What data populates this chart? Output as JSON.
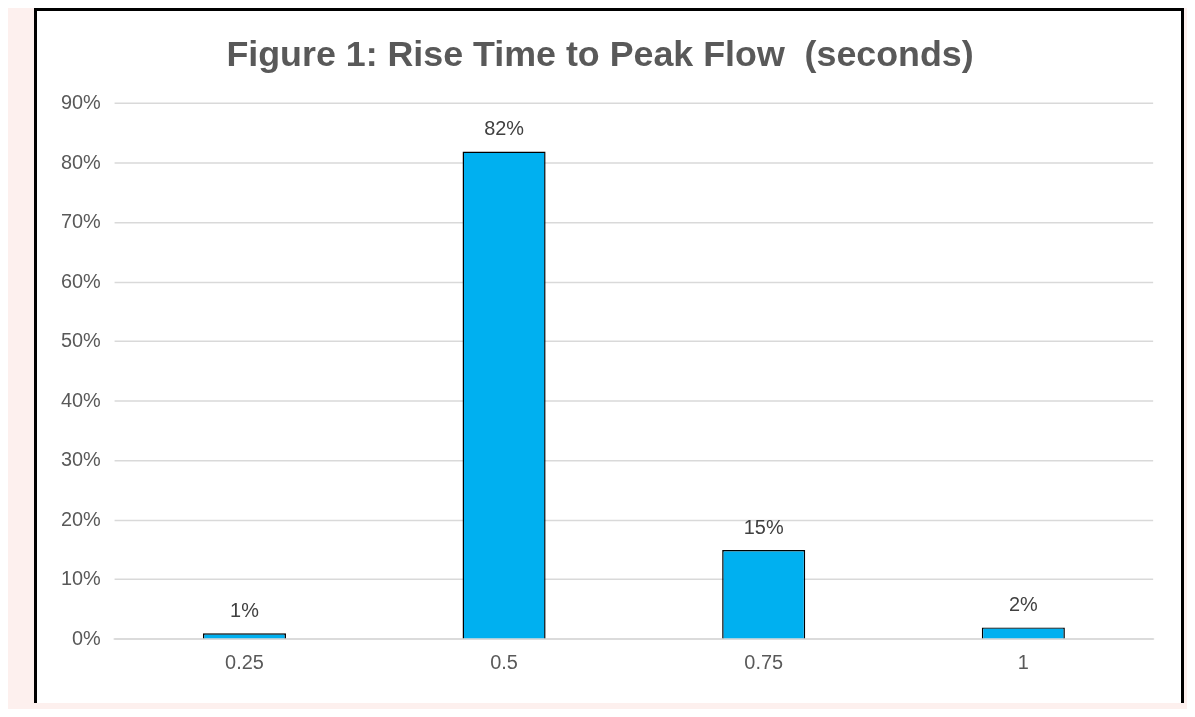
{
  "chart_data": {
    "type": "bar",
    "title": "Figure 1: Rise Time to Peak Flow  (seconds)",
    "categories": [
      "0.25",
      "0.5",
      "0.75",
      "1"
    ],
    "values": [
      1,
      82,
      15,
      2
    ],
    "color": "#00b0f0",
    "value_labels": [
      "1%",
      "82%",
      "15%",
      "2%"
    ],
    "ylim": [
      0,
      90
    ],
    "yticks": [
      {
        "value": 0,
        "label": "0%"
      },
      {
        "value": 10,
        "label": "10%"
      },
      {
        "value": 20,
        "label": "20%"
      },
      {
        "value": 30,
        "label": "30%"
      },
      {
        "value": 40,
        "label": "40%"
      },
      {
        "value": 50,
        "label": "50%"
      },
      {
        "value": 60,
        "label": "60%"
      },
      {
        "value": 70,
        "label": "70%"
      },
      {
        "value": 80,
        "label": "80%"
      },
      {
        "value": 90,
        "label": "90%"
      }
    ],
    "grid": "y",
    "legend": false
  }
}
